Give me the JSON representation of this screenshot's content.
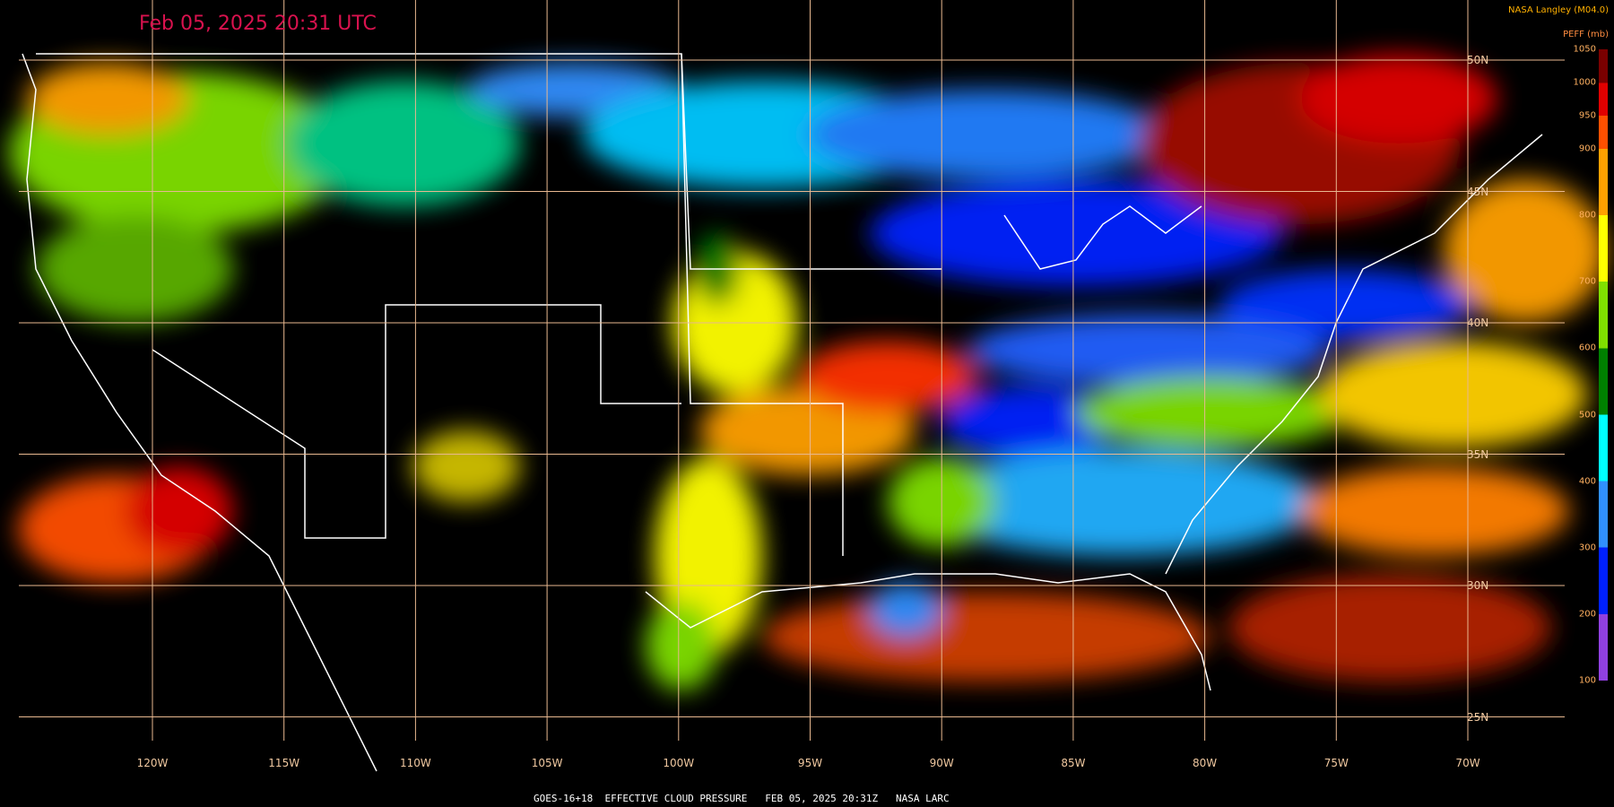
{
  "header": {
    "title": "Feb 05, 2025 20:31 UTC",
    "credit": "NASA Langley (M04.0)"
  },
  "colorbar": {
    "label": "PEFF (mb)",
    "ticks": [
      1050,
      1000,
      950,
      900,
      800,
      700,
      600,
      500,
      400,
      300,
      200,
      100
    ]
  },
  "latitudes": [
    "50N",
    "45N",
    "40N",
    "35N",
    "30N",
    "25N"
  ],
  "longitudes": [
    "120W",
    "115W",
    "110W",
    "105W",
    "100W",
    "95W",
    "90W",
    "85W",
    "80W",
    "75W",
    "70W"
  ],
  "footer": "GOES-16+18  EFFECTIVE CLOUD PRESSURE   FEB 05, 2025 20:31Z   NASA LARC"
}
